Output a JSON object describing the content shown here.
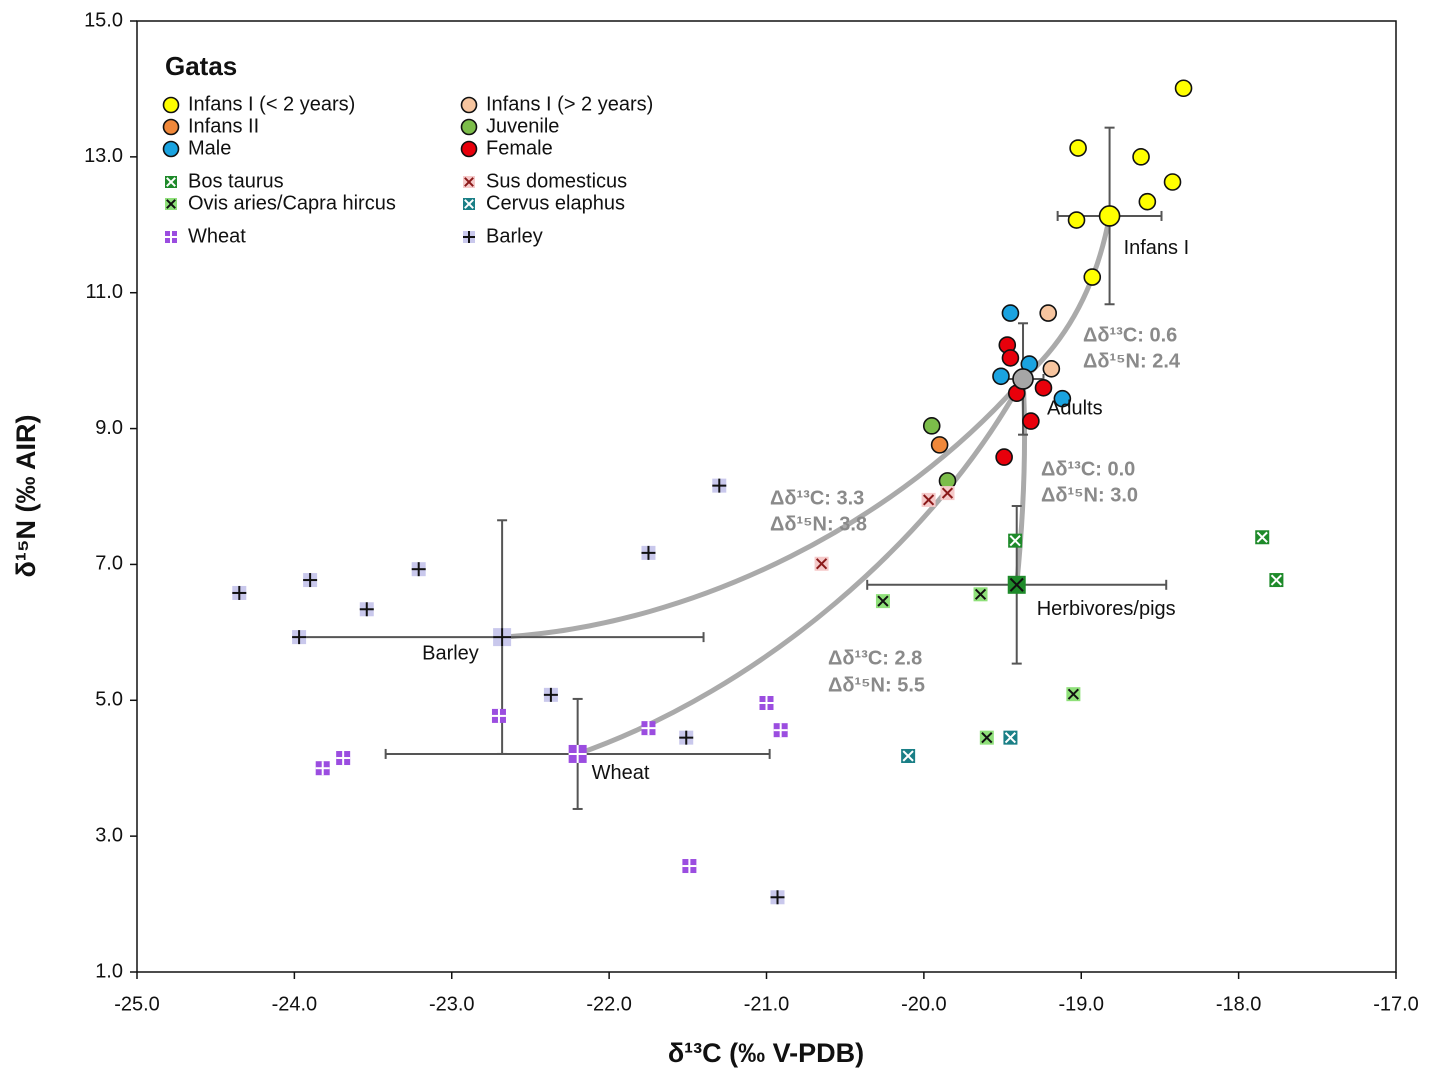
{
  "chart_data": {
    "type": "scatter",
    "legend_title": "Gatas",
    "x_label": "δ¹³C (‰ V-PDB)",
    "y_label": "δ¹⁵N (‰ AIR)",
    "xlim": [
      -25,
      -17
    ],
    "ylim": [
      1,
      15
    ],
    "xticks": [
      {
        "value": -25,
        "label": "-25.0"
      },
      {
        "value": -24,
        "label": "-24.0"
      },
      {
        "value": -23,
        "label": "-23.0"
      },
      {
        "value": -22,
        "label": "-22.0"
      },
      {
        "value": -21,
        "label": "-21.0"
      },
      {
        "value": -20,
        "label": "-20.0"
      },
      {
        "value": -19,
        "label": "-19.0"
      },
      {
        "value": -18,
        "label": "-18.0"
      },
      {
        "value": -17,
        "label": "-17.0"
      }
    ],
    "yticks": [
      {
        "value": 1,
        "label": "1.0"
      },
      {
        "value": 3,
        "label": "3.0"
      },
      {
        "value": 5,
        "label": "5.0"
      },
      {
        "value": 7,
        "label": "7.0"
      },
      {
        "value": 9,
        "label": "9.0"
      },
      {
        "value": 11,
        "label": "11.0"
      },
      {
        "value": 13,
        "label": "13.0"
      },
      {
        "value": 15,
        "label": "15.0"
      }
    ],
    "series": [
      {
        "name": "Infans I (< 2 years)",
        "marker": "circle",
        "color": "#ffff00",
        "x": [
          -18.35,
          -19.02,
          -18.62,
          -18.42,
          -18.58,
          -19.03,
          -18.93
        ],
        "values": [
          14.01,
          13.13,
          13.0,
          12.63,
          12.34,
          12.07,
          11.23
        ]
      },
      {
        "name": "Infans I (> 2 years)",
        "marker": "circle",
        "color": "#f7c59f",
        "x": [
          -19.21,
          -19.19
        ],
        "values": [
          10.7,
          9.88
        ]
      },
      {
        "name": "Infans II",
        "marker": "circle",
        "color": "#f0883a",
        "x": [
          -19.9
        ],
        "values": [
          8.76
        ]
      },
      {
        "name": "Juvenile",
        "marker": "circle",
        "color": "#7cbd4a",
        "x": [
          -19.95,
          -19.85
        ],
        "values": [
          9.04,
          8.23
        ]
      },
      {
        "name": "Male",
        "marker": "circle",
        "color": "#1aa3e0",
        "x": [
          -19.45,
          -19.51,
          -19.12,
          -19.33
        ],
        "values": [
          10.7,
          9.77,
          9.44,
          9.95
        ]
      },
      {
        "name": "Female",
        "marker": "circle",
        "color": "#e8000b",
        "x": [
          -19.47,
          -19.45,
          -19.24,
          -19.32,
          -19.49,
          -19.41
        ],
        "values": [
          10.23,
          10.04,
          9.6,
          9.11,
          8.58,
          9.52
        ]
      },
      {
        "name": "Bos taurus",
        "marker": "square-x",
        "color": "#1e8a2a",
        "edge": "#ffffff",
        "x": [
          -17.85,
          -17.76,
          -19.42
        ],
        "values": [
          7.4,
          6.77,
          7.35
        ]
      },
      {
        "name": "Sus domesticus",
        "marker": "square-x",
        "color": "#f5c9c9",
        "edge": "#8b1a1a",
        "x": [
          -20.65,
          -19.97,
          -19.85
        ],
        "values": [
          7.01,
          7.95,
          8.05
        ]
      },
      {
        "name": "Ovis aries/Capra hircus",
        "marker": "square-x",
        "color": "#8fe07a",
        "edge": "#111111",
        "x": [
          -20.26,
          -19.64,
          -19.05,
          -19.6
        ],
        "values": [
          6.46,
          6.56,
          5.09,
          4.45
        ]
      },
      {
        "name": "Cervus elaphus",
        "marker": "square-x",
        "color": "#1a7f86",
        "edge": "#ffffff",
        "x": [
          -20.1,
          -19.45
        ],
        "values": [
          4.18,
          4.45
        ]
      },
      {
        "name": "Wheat",
        "marker": "square-plus",
        "color": "#9b4de0",
        "edge": "#ffffff",
        "x": [
          -23.82,
          -23.69,
          -22.7,
          -21.75,
          -21.0,
          -20.91,
          -21.49
        ],
        "values": [
          4.0,
          4.15,
          4.77,
          4.59,
          4.96,
          4.56,
          2.56
        ]
      },
      {
        "name": "Barley",
        "marker": "square-plus",
        "color": "#c9c8ec",
        "edge": "#111111",
        "x": [
          -24.35,
          -23.97,
          -23.9,
          -23.54,
          -23.21,
          -22.37,
          -21.75,
          -21.51,
          -21.3,
          -20.93
        ],
        "values": [
          6.58,
          5.93,
          6.77,
          6.34,
          6.93,
          5.08,
          7.17,
          4.45,
          8.16,
          2.1
        ]
      }
    ],
    "means": [
      {
        "label": "Infans I",
        "marker": "circle",
        "color": "#ffff00",
        "x": -18.82,
        "y": 12.13,
        "xerr": 0.33,
        "yerr": 1.3
      },
      {
        "label": "Adults",
        "marker": "circle",
        "color": "#a6a6a6",
        "x": -19.37,
        "y": 9.73,
        "xerr": 0.13,
        "yerr": 0.82
      },
      {
        "label": "Herbivores/pigs",
        "marker": "square-x",
        "color": "#1e8a2a",
        "edge": "#111111",
        "x": -19.41,
        "y": 6.7,
        "xerr": 0.95,
        "yerr": 1.16
      },
      {
        "label": "Barley",
        "marker": "square-plus",
        "color": "#c9c8ec",
        "edge": "#111111",
        "x": -22.68,
        "y": 5.93,
        "xerr": 1.28,
        "yerr": 1.72
      },
      {
        "label": "Wheat",
        "marker": "square-plus",
        "color": "#9b4de0",
        "edge": "#ffffff",
        "x": -22.2,
        "y": 4.21,
        "xerr": 1.22,
        "yerr": 0.81
      }
    ],
    "annotations": [
      "Δδ¹³C: 0.6",
      "Δδ¹⁵N: 2.4",
      "Δδ¹³C: 0.0",
      "Δδ¹⁵N: 3.0",
      "Δδ¹³C: 3.3",
      "Δδ¹⁵N: 3.8",
      "Δδ¹³C: 2.8",
      "Δδ¹⁵N: 5.5"
    ]
  }
}
